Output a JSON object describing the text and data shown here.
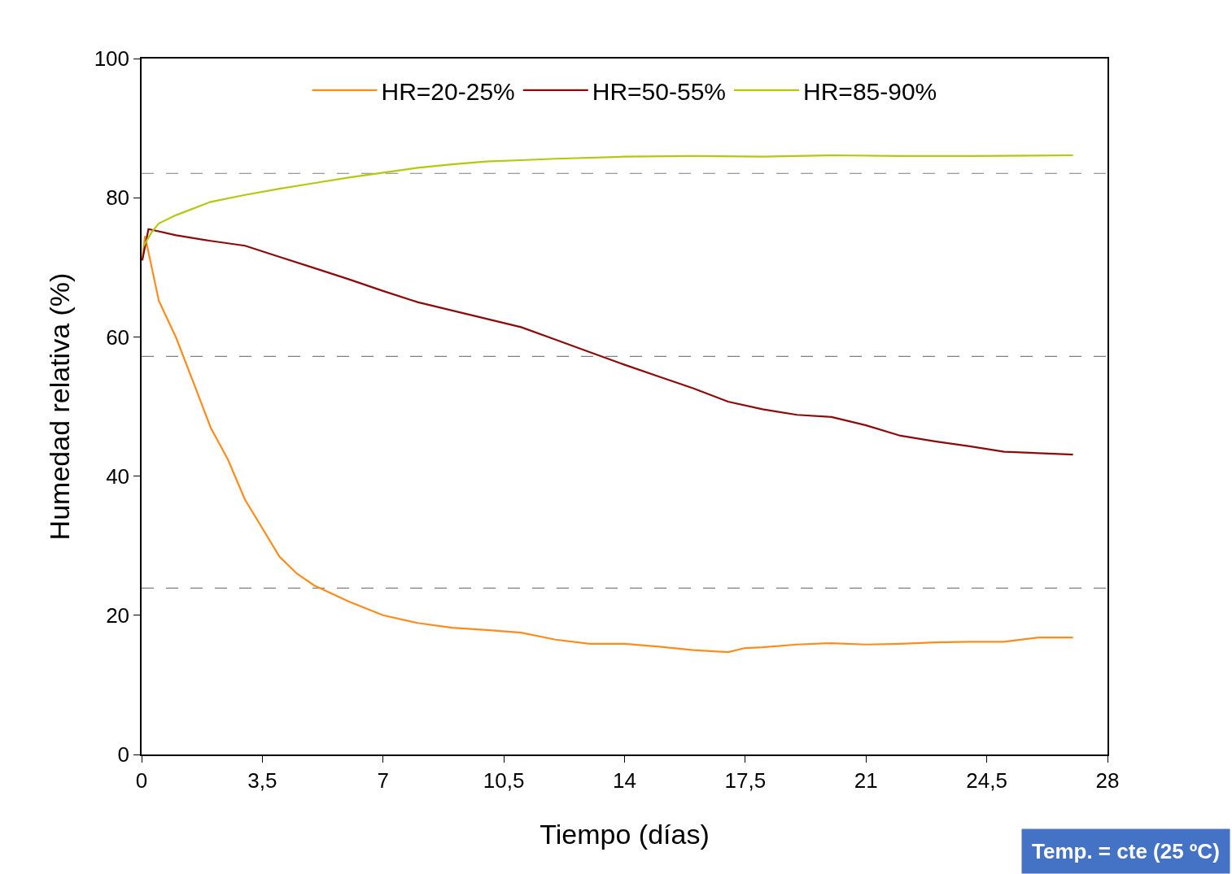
{
  "chart_data": {
    "type": "line",
    "xlabel": "Tiempo (días)",
    "ylabel": "Humedad relativa (%)",
    "xlim": [
      0,
      28
    ],
    "ylim": [
      0,
      100
    ],
    "xticks": [
      0,
      {
        "value": 3.5,
        "label": "3,5"
      },
      7,
      {
        "value": 10.5,
        "label": "10,5"
      },
      14,
      {
        "value": 17.5,
        "label": "17,5"
      },
      21,
      {
        "value": 24.5,
        "label": "24,5"
      },
      28
    ],
    "yticks": [
      0,
      20,
      40,
      60,
      80,
      100
    ],
    "grid": false,
    "legend": "top",
    "marker": "none",
    "line_style": "solid",
    "series": [
      {
        "name": "HR=20-25%",
        "color": "#ff8c1a",
        "x": [
          0.02,
          0.1,
          0.5,
          1,
          1.5,
          2,
          2.5,
          3,
          3.5,
          4,
          4.5,
          5,
          6,
          7,
          8,
          9,
          10,
          11,
          12,
          13,
          14,
          15,
          16,
          17,
          17.5,
          18,
          19,
          20,
          21,
          22,
          23,
          24,
          25,
          26,
          27
        ],
        "values": [
          71,
          74.5,
          65.2,
          59.9,
          53.5,
          47,
          42.4,
          36.6,
          32.5,
          28.4,
          26,
          24.3,
          22,
          20,
          18.9,
          18.2,
          17.9,
          17.5,
          16.5,
          15.9,
          15.9,
          15.5,
          15,
          14.7,
          15.3,
          15.4,
          15.8,
          16,
          15.8,
          15.9,
          16.1,
          16.2,
          16.2,
          16.8,
          16.8
        ]
      },
      {
        "name": "HR=50-55%",
        "color": "#8c0a0a",
        "x": [
          0.02,
          0.2,
          1,
          2,
          3,
          4,
          5,
          6,
          7,
          8,
          9,
          10,
          11,
          12,
          13,
          14,
          15,
          16,
          17,
          18,
          19,
          20,
          21,
          22,
          23,
          24,
          25,
          26,
          27
        ],
        "values": [
          71,
          75.5,
          74.6,
          73.8,
          73.1,
          71.5,
          69.9,
          68.3,
          66.6,
          65,
          63.8,
          62.6,
          61.4,
          59.6,
          57.8,
          56,
          54.3,
          52.6,
          50.7,
          49.6,
          48.8,
          48.5,
          47.3,
          45.8,
          45,
          44.3,
          43.5,
          43.3,
          43.1
        ]
      },
      {
        "name": "HR=85-90%",
        "color": "#b5c70f",
        "x": [
          0.05,
          0.3,
          0.5,
          1,
          2,
          3,
          4,
          5,
          6,
          7,
          8,
          9,
          10,
          11,
          12,
          14,
          16,
          18,
          20,
          22,
          24,
          27
        ],
        "values": [
          73,
          75.1,
          76.3,
          77.5,
          79.4,
          80.4,
          81.3,
          82.1,
          82.9,
          83.6,
          84.3,
          84.8,
          85.2,
          85.4,
          85.6,
          85.9,
          86,
          85.9,
          86.1,
          86,
          86,
          86.1
        ]
      }
    ],
    "ref_lines": [
      {
        "axis": "y",
        "value": 83.5,
        "color": "#808080",
        "line_style": "dashed"
      },
      {
        "axis": "y",
        "value": 57.2,
        "color": "#808080",
        "line_style": "dashed"
      },
      {
        "axis": "y",
        "value": 23.9,
        "color": "#808080",
        "line_style": "dashed"
      }
    ],
    "annotations": [
      "Temp. = cte (25 ºC)"
    ]
  }
}
